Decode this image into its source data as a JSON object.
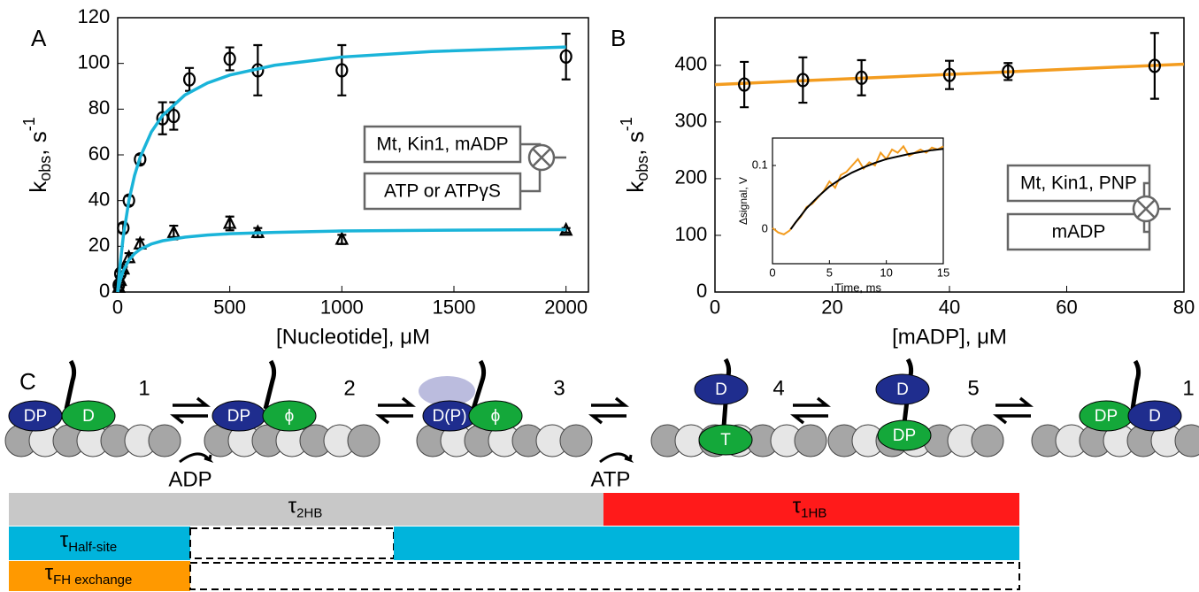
{
  "chart_data": [
    {
      "type": "scatter",
      "label": "A",
      "xlabel": "[Nucleotide], μM",
      "ylabel": {
        "base": "k",
        "sub": "obs",
        "text": ", s",
        "sup": "-1"
      },
      "xlim": [
        0,
        2100
      ],
      "xticks": [
        0,
        500,
        1000,
        1500,
        2000
      ],
      "ylim": [
        0,
        120
      ],
      "yticks": [
        0,
        20,
        40,
        60,
        80,
        100,
        120
      ],
      "legend_boxes": [
        "Mt, Kin1, mADP",
        "ATP or ATPγS"
      ],
      "series": [
        {
          "marker": "circle",
          "color": "#000000",
          "x": [
            5,
            12,
            25,
            50,
            100,
            200,
            250,
            320,
            500,
            625,
            1000,
            2000
          ],
          "values": [
            3,
            8,
            28,
            40,
            58,
            76,
            77,
            93,
            102,
            97,
            97,
            103
          ],
          "errors": [
            1,
            1,
            2,
            2,
            2,
            7,
            6,
            5,
            5,
            11,
            11,
            10
          ]
        },
        {
          "marker": "triangle",
          "color": "#000000",
          "x": [
            5,
            12,
            25,
            50,
            100,
            250,
            500,
            625,
            1000,
            2000
          ],
          "values": [
            2,
            5,
            10,
            15,
            21,
            26,
            30,
            26,
            23,
            27
          ],
          "errors": [
            1,
            1,
            1,
            2,
            2,
            3,
            3,
            2,
            2,
            1
          ]
        },
        {
          "marker": "none",
          "color": "#1ab4d9",
          "x": [
            0,
            10,
            25,
            50,
            75,
            100,
            150,
            200,
            300,
            400,
            500,
            700,
            1000,
            1400,
            2000
          ],
          "values": [
            0,
            11.2,
            24.3,
            40.0,
            50.9,
            58.9,
            70.0,
            77.2,
            86.2,
            91.4,
            94.9,
            99.2,
            102.8,
            105.2,
            107.2
          ]
        },
        {
          "marker": "none",
          "color": "#1ab4d9",
          "x": [
            0,
            10,
            25,
            50,
            75,
            100,
            150,
            200,
            300,
            400,
            500,
            700,
            1000,
            1400,
            2000
          ],
          "values": [
            0,
            4.7,
            9.3,
            14,
            16.8,
            18.7,
            21,
            22.4,
            24,
            24.9,
            25.5,
            26.1,
            26.7,
            27,
            27.3
          ]
        }
      ]
    },
    {
      "type": "scatter",
      "label": "B",
      "xlabel": "[mADP], μM",
      "ylabel": {
        "base": "k",
        "sub": "obs",
        "text": ", s",
        "sup": "-1"
      },
      "xlim": [
        0,
        80
      ],
      "xticks": [
        0,
        20,
        40,
        60,
        80
      ],
      "ylim": [
        0,
        484
      ],
      "yticks": [
        0,
        100,
        200,
        300,
        400
      ],
      "legend_boxes": [
        "Mt, Kin1, PNP",
        "mADP"
      ],
      "series": [
        {
          "marker": "none",
          "color": "#f39c1f",
          "x": [
            0,
            80
          ],
          "values": [
            366,
            402
          ]
        },
        {
          "marker": "circle",
          "color": "#000000",
          "x": [
            5,
            15,
            25,
            40,
            50,
            75
          ],
          "values": [
            366,
            374,
            378,
            383,
            389,
            399
          ],
          "errors": [
            40,
            40,
            31,
            25,
            15,
            58
          ]
        }
      ]
    },
    {
      "type": "line",
      "xlabel": "Time, ms",
      "ylabel": "Δsignal, V",
      "xlim": [
        0,
        15
      ],
      "xticks": [
        0,
        5,
        10,
        15
      ],
      "ylim": [
        -0.054,
        0.143
      ],
      "yticks": [
        0,
        0.1
      ],
      "series": [
        {
          "marker": "none",
          "color": "#f39c1f",
          "x": [
            0,
            0.5,
            1,
            1.5,
            2,
            2.5,
            3,
            3.5,
            4,
            4.5,
            5,
            5.5,
            6,
            6.5,
            7,
            7.5,
            8,
            8.5,
            9,
            9.5,
            10,
            10.5,
            11,
            11.5,
            12,
            12.5,
            13,
            13.5,
            14,
            14.5,
            15
          ],
          "values": [
            0.002,
            -0.005,
            -0.008,
            -0.002,
            0.01,
            0.02,
            0.035,
            0.04,
            0.05,
            0.06,
            0.075,
            0.065,
            0.085,
            0.09,
            0.1,
            0.11,
            0.095,
            0.105,
            0.1,
            0.12,
            0.11,
            0.125,
            0.12,
            0.13,
            0.115,
            0.12,
            0.125,
            0.12,
            0.128,
            0.125,
            0.13
          ]
        },
        {
          "marker": "none",
          "color": "#000000",
          "x": [
            1.6,
            2,
            3,
            4,
            5,
            6,
            7,
            8,
            9,
            10,
            11,
            12,
            13,
            14,
            15
          ],
          "values": [
            0,
            0.01,
            0.033,
            0.051,
            0.067,
            0.079,
            0.089,
            0.097,
            0.104,
            0.11,
            0.114,
            0.118,
            0.121,
            0.124,
            0.126
          ]
        }
      ]
    }
  ],
  "diagram": {
    "label": "C",
    "states": [
      {
        "number": "1",
        "heads": [
          "DP",
          "D"
        ]
      },
      {
        "number": "2",
        "heads": [
          "DP",
          "ϕ"
        ]
      },
      {
        "number": "3",
        "heads": [
          "D(P)",
          "ϕ"
        ]
      },
      {
        "number": "4",
        "heads": [
          "D",
          "T"
        ]
      },
      {
        "number": "5",
        "heads": [
          "D",
          "DP"
        ]
      },
      {
        "number": "1",
        "heads": [
          "DP",
          "D"
        ]
      }
    ],
    "transitions": [
      "ADP",
      "ATP"
    ],
    "timelines": [
      {
        "symbol": "τ",
        "sub": "2HB"
      },
      {
        "symbol": "τ",
        "sub": "1HB"
      },
      {
        "symbol": "τ",
        "sub": "Half-site"
      },
      {
        "symbol": "τ",
        "sub": "FH exchange"
      }
    ]
  }
}
